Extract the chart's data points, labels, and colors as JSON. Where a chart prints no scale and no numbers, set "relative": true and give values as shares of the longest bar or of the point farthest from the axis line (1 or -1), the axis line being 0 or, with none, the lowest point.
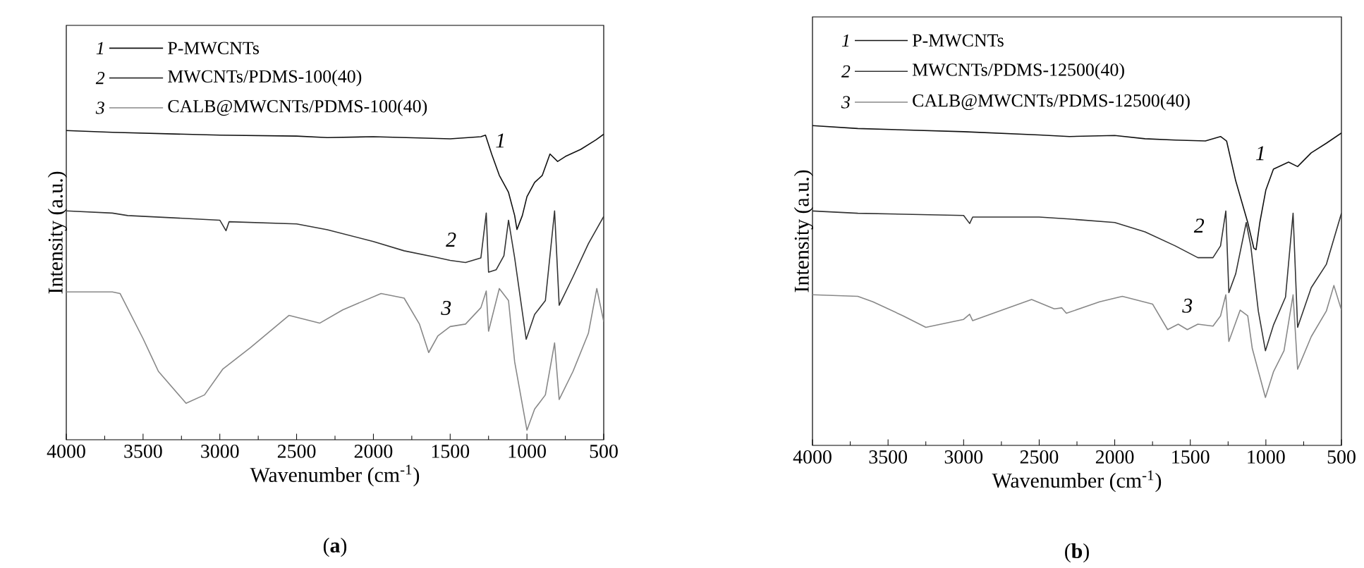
{
  "chart_data": [
    {
      "type": "line",
      "title": "(**a**)",
      "xlabel": "Wavenumber (cm$^{-1}$)",
      "ylabel": "Intensity (a.u.)",
      "relative": true,
      "tick_labels": "x",
      "legend": "top left",
      "xlim": [
        4000,
        500
      ],
      "xticks": [
        4000,
        3500,
        3000,
        2500,
        2000,
        1500,
        1000,
        500
      ],
      "annotations": [
        "1",
        "2",
        "3"
      ],
      "series": [
        {
          "name": "P-MWCNTs",
          "color": "#111111",
          "x": [
            4000,
            3700,
            3000,
            2500,
            2300,
            2000,
            1700,
            1500,
            1300,
            1270,
            1230,
            1180,
            1120,
            1080,
            1065,
            1030,
            1000,
            950,
            900,
            850,
            800,
            750,
            650,
            550,
            500
          ],
          "values": [
            1.0,
            0.994,
            0.985,
            0.982,
            0.977,
            0.98,
            0.976,
            0.973,
            0.98,
            0.985,
            0.924,
            0.855,
            0.8,
            0.725,
            0.68,
            0.725,
            0.786,
            0.832,
            0.855,
            0.924,
            0.9,
            0.916,
            0.939,
            0.97,
            0.988
          ]
        },
        {
          "name": "MWCNTs/PDMS-100(40)",
          "color": "#333333",
          "x": [
            4000,
            3700,
            3600,
            3000,
            2960,
            2940,
            2500,
            2300,
            2000,
            1800,
            1600,
            1500,
            1400,
            1300,
            1265,
            1250,
            1200,
            1150,
            1120,
            1080,
            1005,
            950,
            880,
            820,
            790,
            700,
            600,
            500
          ],
          "values": [
            0.74,
            0.733,
            0.725,
            0.71,
            0.676,
            0.705,
            0.698,
            0.679,
            0.641,
            0.611,
            0.591,
            0.58,
            0.573,
            0.588,
            0.733,
            0.542,
            0.55,
            0.595,
            0.71,
            0.588,
            0.325,
            0.405,
            0.45,
            0.74,
            0.435,
            0.527,
            0.634,
            0.722
          ]
        },
        {
          "name": "CALB@MWCNTs/PDMS-100(40)",
          "color": "#888888",
          "x": [
            4000,
            3700,
            3650,
            3500,
            3400,
            3220,
            3100,
            2980,
            2800,
            2550,
            2350,
            2200,
            1950,
            1800,
            1700,
            1640,
            1580,
            1500,
            1400,
            1300,
            1265,
            1250,
            1180,
            1120,
            1080,
            1000,
            950,
            880,
            820,
            790,
            700,
            600,
            545,
            500
          ],
          "values": [
            0.478,
            0.478,
            0.473,
            0.327,
            0.221,
            0.118,
            0.145,
            0.229,
            0.298,
            0.402,
            0.377,
            0.42,
            0.473,
            0.458,
            0.374,
            0.282,
            0.336,
            0.366,
            0.374,
            0.427,
            0.481,
            0.351,
            0.489,
            0.45,
            0.252,
            0.031,
            0.099,
            0.145,
            0.313,
            0.13,
            0.221,
            0.344,
            0.489,
            0.382
          ]
        }
      ]
    },
    {
      "type": "line",
      "title": "(**b**)",
      "xlabel": "Wavenumber (cm$^{-1}$)",
      "ylabel": "Intensity (a.u.)",
      "relative": true,
      "tick_labels": "x",
      "legend": "top left",
      "xlim": [
        4000,
        500
      ],
      "xticks": [
        4000,
        3500,
        3000,
        2500,
        2000,
        1500,
        1000,
        500
      ],
      "annotations": [
        "1",
        "2",
        "3"
      ],
      "series": [
        {
          "name": "P-MWCNTs",
          "color": "#111111",
          "x": [
            4000,
            3700,
            3000,
            2500,
            2300,
            2000,
            1800,
            1600,
            1400,
            1300,
            1260,
            1200,
            1120,
            1080,
            1065,
            1040,
            1000,
            950,
            850,
            790,
            700,
            600,
            500
          ],
          "values": [
            1.0,
            0.991,
            0.981,
            0.971,
            0.966,
            0.969,
            0.959,
            0.955,
            0.952,
            0.966,
            0.952,
            0.828,
            0.697,
            0.617,
            0.612,
            0.697,
            0.799,
            0.864,
            0.886,
            0.872,
            0.915,
            0.945,
            0.977
          ]
        },
        {
          "name": "MWCNTs/PDMS-12500(40)",
          "color": "#333333",
          "x": [
            4000,
            3700,
            3000,
            2960,
            2940,
            2500,
            2300,
            2000,
            1800,
            1600,
            1450,
            1350,
            1300,
            1265,
            1245,
            1200,
            1130,
            1100,
            1050,
            1003,
            950,
            870,
            820,
            790,
            700,
            600,
            500
          ],
          "values": [
            0.733,
            0.726,
            0.719,
            0.694,
            0.714,
            0.714,
            0.708,
            0.697,
            0.668,
            0.624,
            0.587,
            0.587,
            0.624,
            0.733,
            0.478,
            0.536,
            0.697,
            0.624,
            0.42,
            0.296,
            0.376,
            0.464,
            0.726,
            0.369,
            0.493,
            0.566,
            0.726
          ]
        },
        {
          "name": "CALB@MWCNTs/PDMS-12500(40)",
          "color": "#888888",
          "x": [
            4000,
            3700,
            3600,
            3400,
            3250,
            3000,
            2960,
            2940,
            2700,
            2550,
            2400,
            2350,
            2320,
            2100,
            1950,
            1750,
            1650,
            1580,
            1520,
            1450,
            1350,
            1300,
            1265,
            1245,
            1170,
            1120,
            1090,
            1003,
            950,
            880,
            820,
            790,
            700,
            600,
            550,
            500
          ],
          "values": [
            0.471,
            0.466,
            0.449,
            0.405,
            0.369,
            0.394,
            0.41,
            0.39,
            0.431,
            0.456,
            0.427,
            0.43,
            0.413,
            0.449,
            0.466,
            0.442,
            0.362,
            0.379,
            0.362,
            0.379,
            0.373,
            0.405,
            0.471,
            0.325,
            0.423,
            0.405,
            0.303,
            0.15,
            0.23,
            0.296,
            0.471,
            0.238,
            0.34,
            0.42,
            0.5,
            0.423
          ]
        }
      ]
    }
  ]
}
